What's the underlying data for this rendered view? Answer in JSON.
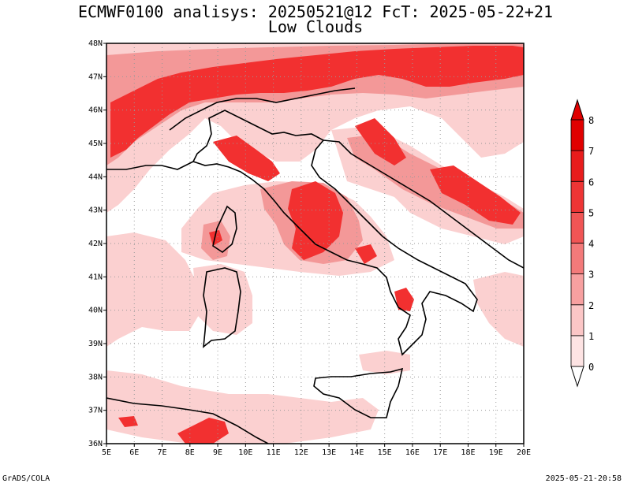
{
  "title": {
    "line1": "ECMWF0100 analisys: 20250521@12 FcT: 2025-05-22+21",
    "line2": "Low Clouds"
  },
  "footer": {
    "left": "GrADS/COLA",
    "right": "2025-05-21-20:58"
  },
  "map": {
    "lon_labels": [
      "5E",
      "6E",
      "7E",
      "8E",
      "9E",
      "10E",
      "11E",
      "12E",
      "13E",
      "14E",
      "15E",
      "16E",
      "17E",
      "18E",
      "19E",
      "20E"
    ],
    "lat_labels": [
      "48N",
      "47N",
      "46N",
      "45N",
      "44N",
      "43N",
      "42N",
      "41N",
      "40N",
      "39N",
      "38N",
      "37N",
      "36N"
    ]
  },
  "colorbar": {
    "levels": [
      "0",
      "1",
      "2",
      "3",
      "4",
      "5",
      "6",
      "7",
      "8"
    ],
    "colors": [
      "#ffffff",
      "#fde3e3",
      "#fbc6c6",
      "#f7a0a0",
      "#f37a7a",
      "#f05555",
      "#ee3535",
      "#e81c1c",
      "#e00000"
    ]
  },
  "colors": {
    "shade_light": "#fbd0d0",
    "shade_mid": "#f39898",
    "shade_dark": "#f23030",
    "coast": "#000000"
  }
}
